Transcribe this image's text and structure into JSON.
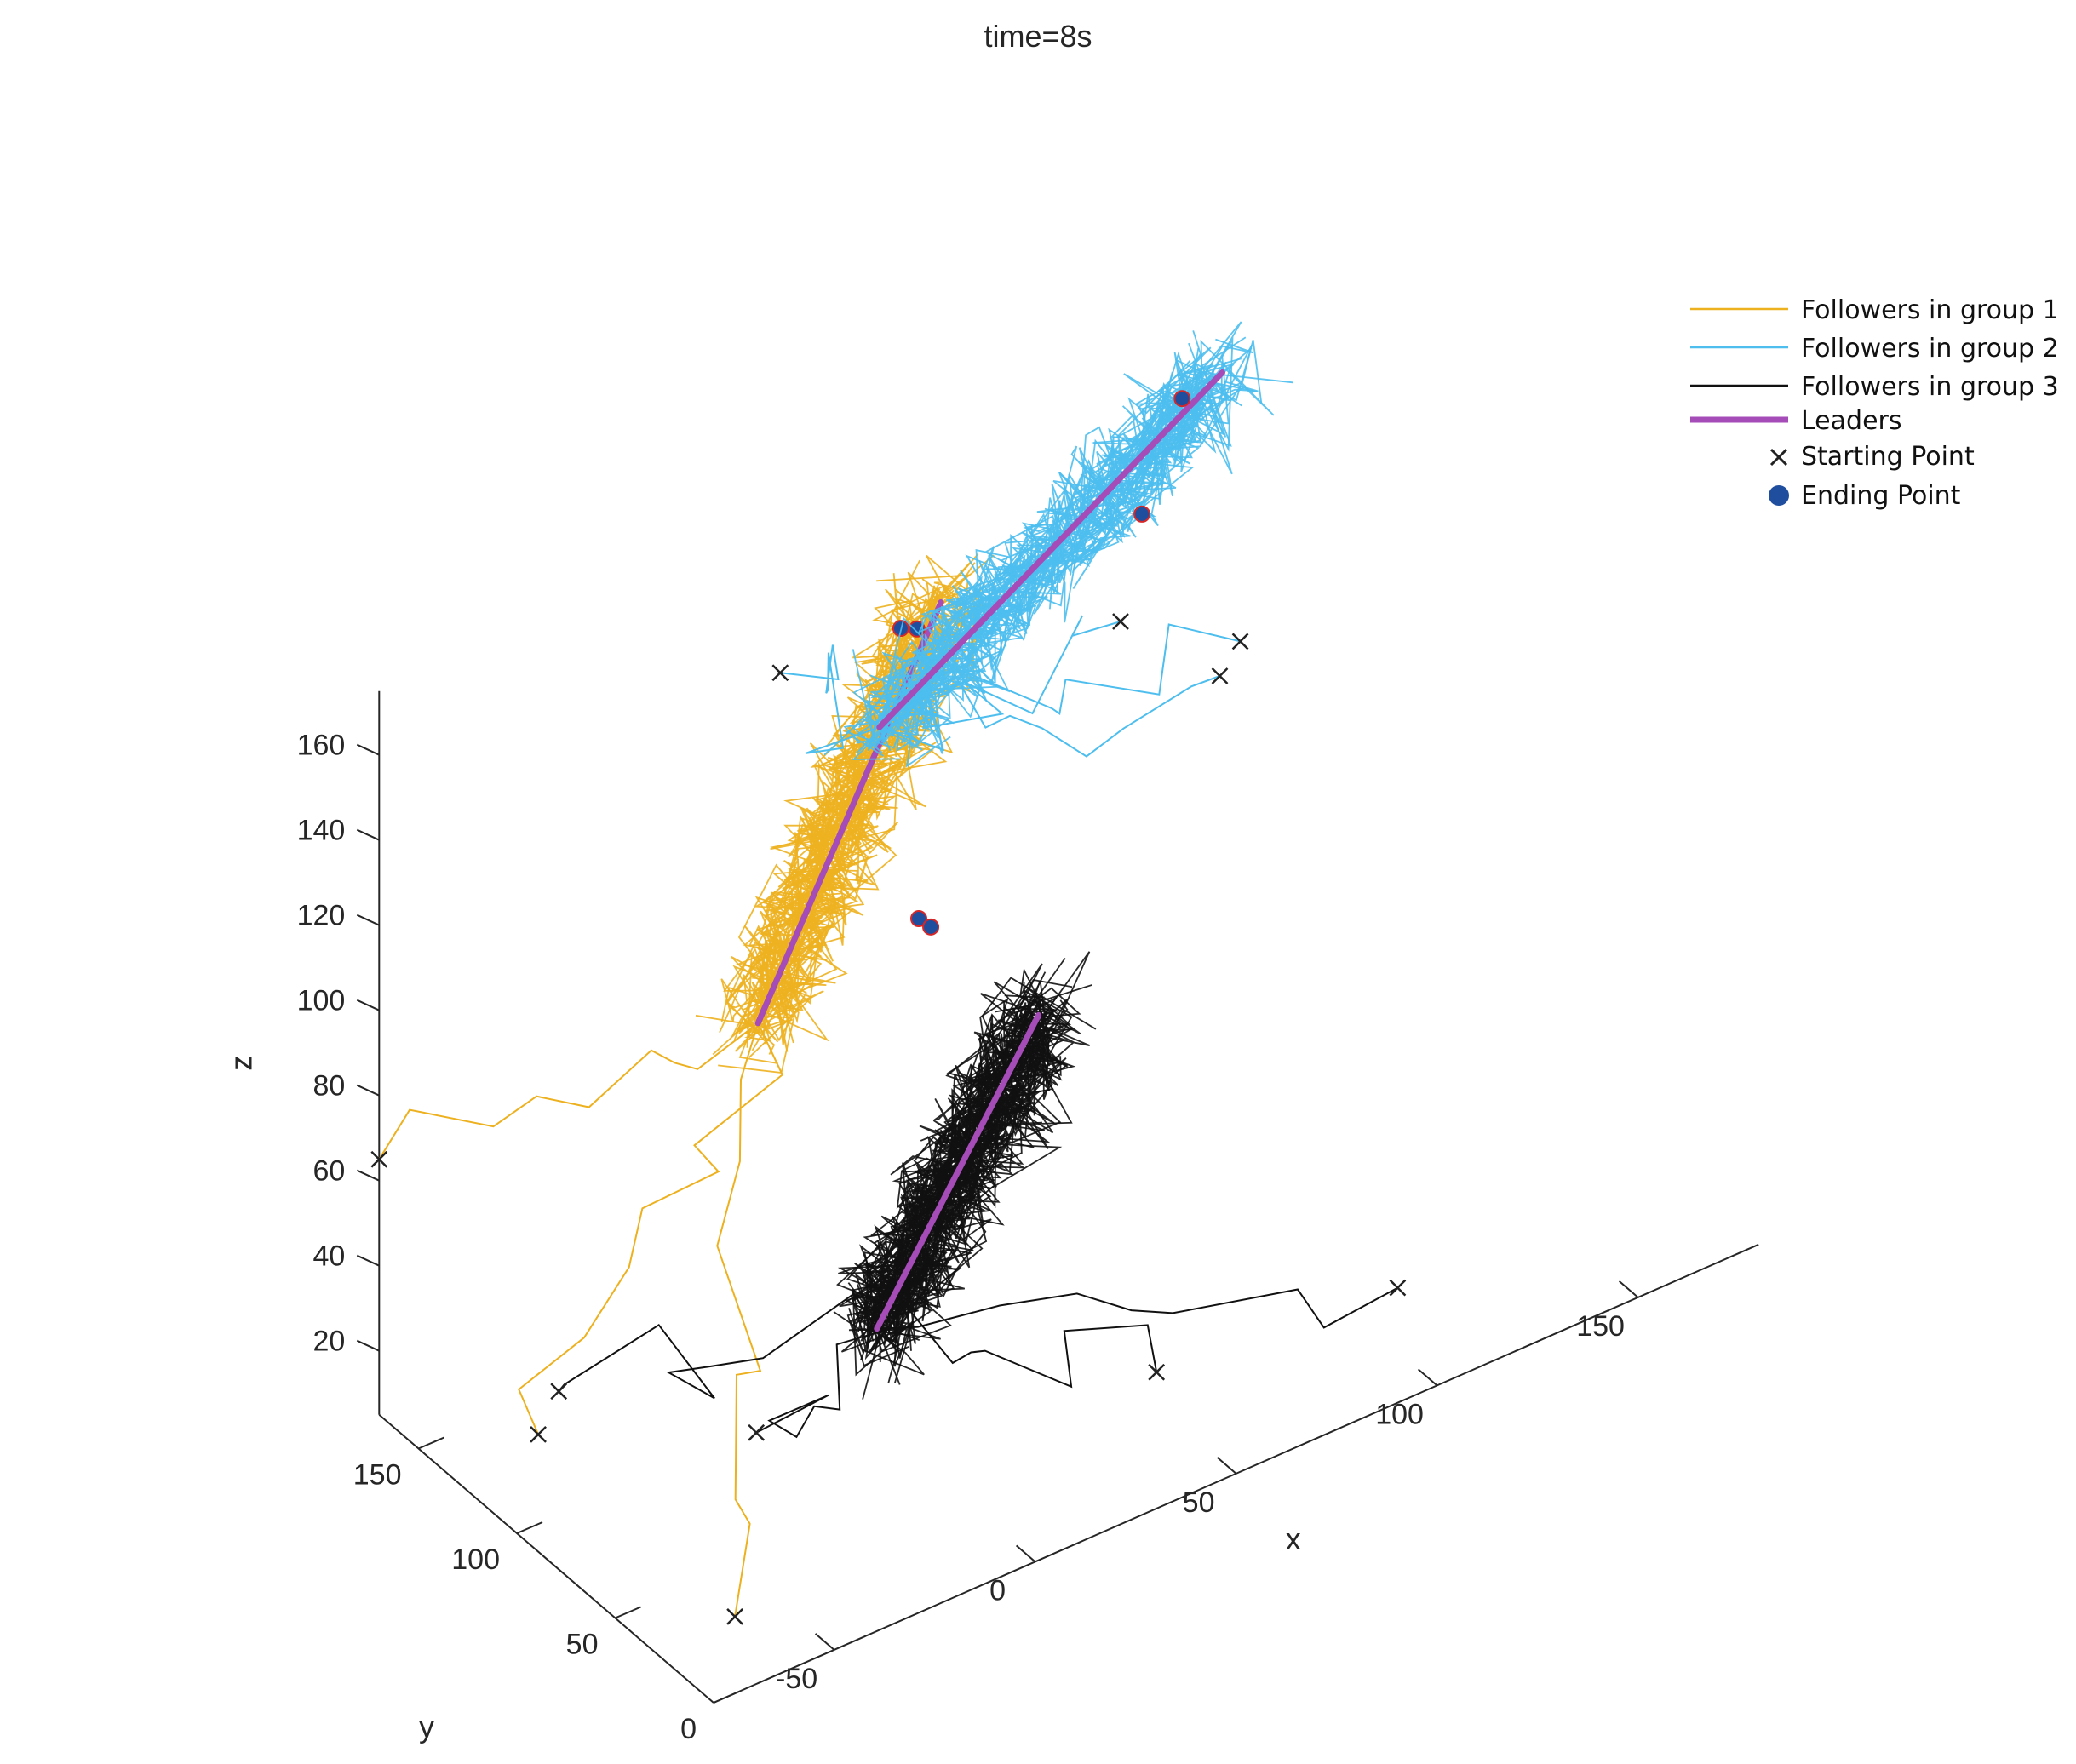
{
  "chart_data": {
    "type": "line3d",
    "title": "time=8s",
    "xlabel": "x",
    "ylabel": "y",
    "zlabel": "z",
    "xlim": [
      -80,
      180
    ],
    "ylim": [
      0,
      170
    ],
    "zlim": [
      5,
      175
    ],
    "xticks": [
      -50,
      0,
      50,
      100,
      150
    ],
    "yticks": [
      0,
      50,
      100,
      150
    ],
    "zticks": [
      20,
      40,
      60,
      80,
      100,
      120,
      140,
      160
    ],
    "colors": {
      "group1": "#EDB120",
      "group2": "#4DBEEE",
      "group3": "#111111",
      "leaders": "#A64CB8",
      "start": "#222222",
      "end_fill": "#1F4E9E",
      "end_edge": "#D62728",
      "axes": "#262626"
    },
    "legend": {
      "position": "top-right",
      "entries": [
        {
          "label": "Followers in group 1",
          "kind": "line",
          "color": "#EDB120"
        },
        {
          "label": "Followers in group 2",
          "kind": "line",
          "color": "#4DBEEE"
        },
        {
          "label": "Followers in group 3",
          "kind": "line",
          "color": "#111111"
        },
        {
          "label": "Leaders",
          "kind": "thickline",
          "color": "#A64CB8"
        },
        {
          "label": "Starting Point",
          "kind": "cross",
          "color": "#222222"
        },
        {
          "label": "Ending Point",
          "kind": "dot",
          "color": "#1F4E9E"
        }
      ]
    },
    "groups": [
      {
        "name": "Followers in group 1",
        "leader_path": [
          [
            -20,
            100,
            100
          ],
          [
            50,
            150,
            150
          ]
        ],
        "cluster_spread": [
          14,
          14,
          18
        ],
        "wander_paths": 28,
        "starts": [
          [
            -80,
            170,
            65
          ],
          [
            -60,
            130,
            8
          ],
          [
            -60,
            30,
            5
          ]
        ],
        "ends": [
          [
            40,
            150,
            148
          ],
          [
            45,
            152,
            145
          ]
        ]
      },
      {
        "name": "Followers in group 2",
        "leader_path": [
          [
            20,
            120,
            145
          ],
          [
            120,
            150,
            175
          ]
        ],
        "cluster_spread": [
          14,
          14,
          18
        ],
        "wander_paths": 28,
        "starts": [
          [
            10,
            150,
            150
          ],
          [
            80,
            120,
            145
          ],
          [
            90,
            90,
            140
          ],
          [
            100,
            100,
            140
          ]
        ],
        "ends": [
          [
            110,
            150,
            173
          ],
          [
            100,
            150,
            150
          ]
        ]
      },
      {
        "name": "Followers in group 3",
        "leader_path": [
          [
            -10,
            60,
            40
          ],
          [
            40,
            80,
            85
          ]
        ],
        "cluster_spread": [
          14,
          14,
          18
        ],
        "wander_paths": 34,
        "starts": [
          [
            -40,
            60,
            28
          ],
          [
            40,
            20,
            25
          ],
          [
            100,
            20,
            20
          ],
          [
            -50,
            140,
            10
          ]
        ],
        "ends": [
          [
            20,
            100,
            108
          ],
          [
            22,
            98,
            106
          ]
        ]
      }
    ]
  }
}
